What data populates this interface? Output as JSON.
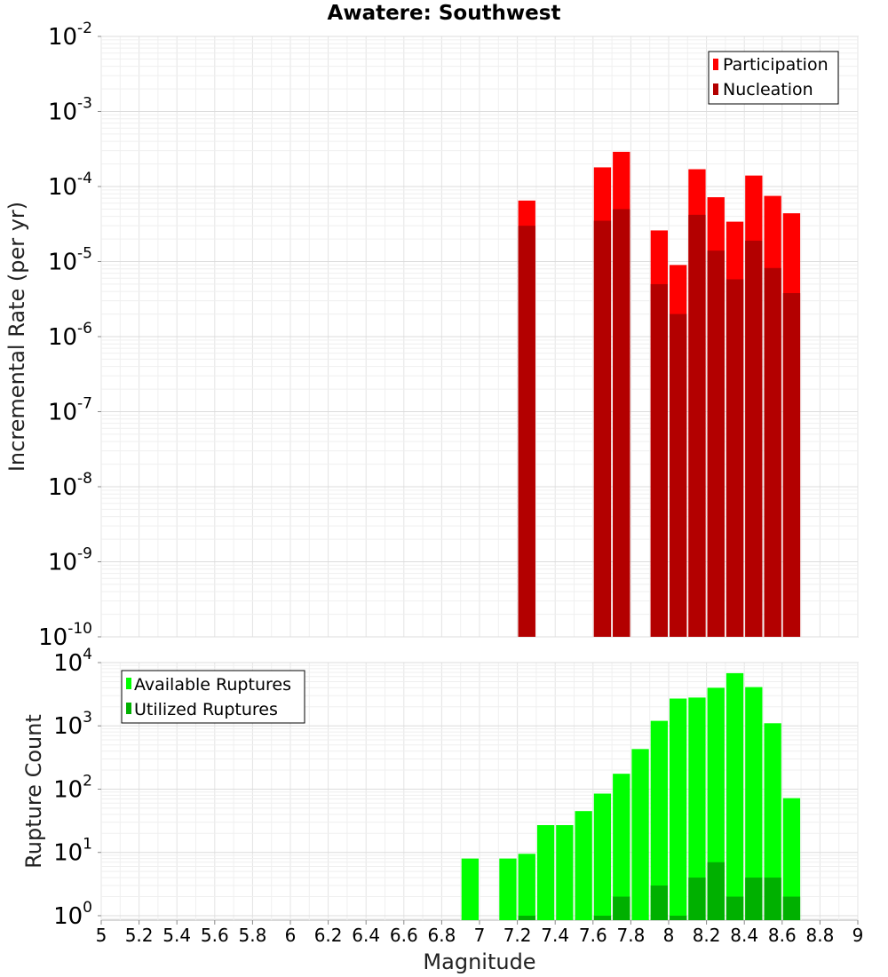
{
  "chart_data": [
    {
      "type": "bar",
      "title": "Awatere: Southwest",
      "xlabel": "",
      "ylabel": "Incremental Rate (per yr)",
      "y_scale": "log",
      "ylim": [
        1e-10,
        0.01
      ],
      "xlim": [
        5,
        9
      ],
      "bar_width": 0.1,
      "grid": true,
      "legend_position": "top-right",
      "y_ticks": [
        {
          "base": "10",
          "exp": "-10",
          "value": 1e-10
        },
        {
          "base": "10",
          "exp": "-9",
          "value": 1e-09
        },
        {
          "base": "10",
          "exp": "-8",
          "value": 1e-08
        },
        {
          "base": "10",
          "exp": "-7",
          "value": 1e-07
        },
        {
          "base": "10",
          "exp": "-6",
          "value": 1e-06
        },
        {
          "base": "10",
          "exp": "-5",
          "value": 1e-05
        },
        {
          "base": "10",
          "exp": "-4",
          "value": 0.0001
        },
        {
          "base": "10",
          "exp": "-3",
          "value": 0.001
        },
        {
          "base": "10",
          "exp": "-2",
          "value": 0.01
        }
      ],
      "series": [
        {
          "name": "Participation",
          "color": "#ff0000",
          "x": [
            7.25,
            7.65,
            7.75,
            7.95,
            8.05,
            8.15,
            8.25,
            8.35,
            8.45,
            8.55,
            8.65
          ],
          "values": [
            6.5e-05,
            0.00018,
            0.00029,
            2.6e-05,
            9e-06,
            0.00017,
            7.2e-05,
            3.4e-05,
            0.00014,
            7.5e-05,
            4.4e-05
          ]
        },
        {
          "name": "Nucleation",
          "color": "#b30000",
          "x": [
            7.25,
            7.65,
            7.75,
            7.95,
            8.05,
            8.15,
            8.25,
            8.35,
            8.45,
            8.55,
            8.65
          ],
          "values": [
            3e-05,
            3.5e-05,
            5e-05,
            5e-06,
            2e-06,
            4.2e-05,
            1.4e-05,
            5.8e-06,
            1.9e-05,
            8.2e-06,
            3.8e-06
          ]
        }
      ]
    },
    {
      "type": "bar",
      "title": "",
      "xlabel": "Magnitude",
      "ylabel": "Rupture Count",
      "y_scale": "log",
      "ylim": [
        0.85,
        10000
      ],
      "xlim": [
        5,
        9
      ],
      "bar_width": 0.1,
      "grid": true,
      "legend_position": "top-left",
      "x_ticks": [
        "5",
        "5.2",
        "5.4",
        "5.6",
        "5.8",
        "6",
        "6.2",
        "6.4",
        "6.6",
        "6.8",
        "7",
        "7.2",
        "7.4",
        "7.6",
        "7.8",
        "8",
        "8.2",
        "8.4",
        "8.6",
        "8.8",
        "9"
      ],
      "y_ticks": [
        {
          "base": "10",
          "exp": "0",
          "value": 1
        },
        {
          "base": "10",
          "exp": "1",
          "value": 10
        },
        {
          "base": "10",
          "exp": "2",
          "value": 100
        },
        {
          "base": "10",
          "exp": "3",
          "value": 1000
        },
        {
          "base": "10",
          "exp": "4",
          "value": 10000
        }
      ],
      "series": [
        {
          "name": "Available Ruptures",
          "color": "#00ff00",
          "x": [
            6.95,
            7.15,
            7.25,
            7.35,
            7.45,
            7.55,
            7.65,
            7.75,
            7.85,
            7.95,
            8.05,
            8.15,
            8.25,
            8.35,
            8.45,
            8.55,
            8.65
          ],
          "values": [
            8,
            8,
            9.5,
            27,
            27,
            45,
            85,
            175,
            430,
            1200,
            2700,
            2800,
            4000,
            6800,
            4100,
            1100,
            72
          ]
        },
        {
          "name": "Utilized Ruptures",
          "color": "#00b000",
          "x": [
            7.25,
            7.65,
            7.75,
            7.95,
            8.05,
            8.15,
            8.25,
            8.35,
            8.45,
            8.55,
            8.65
          ],
          "values": [
            1,
            1,
            2,
            3,
            1,
            4,
            7,
            2,
            4,
            4,
            2
          ]
        }
      ]
    }
  ]
}
